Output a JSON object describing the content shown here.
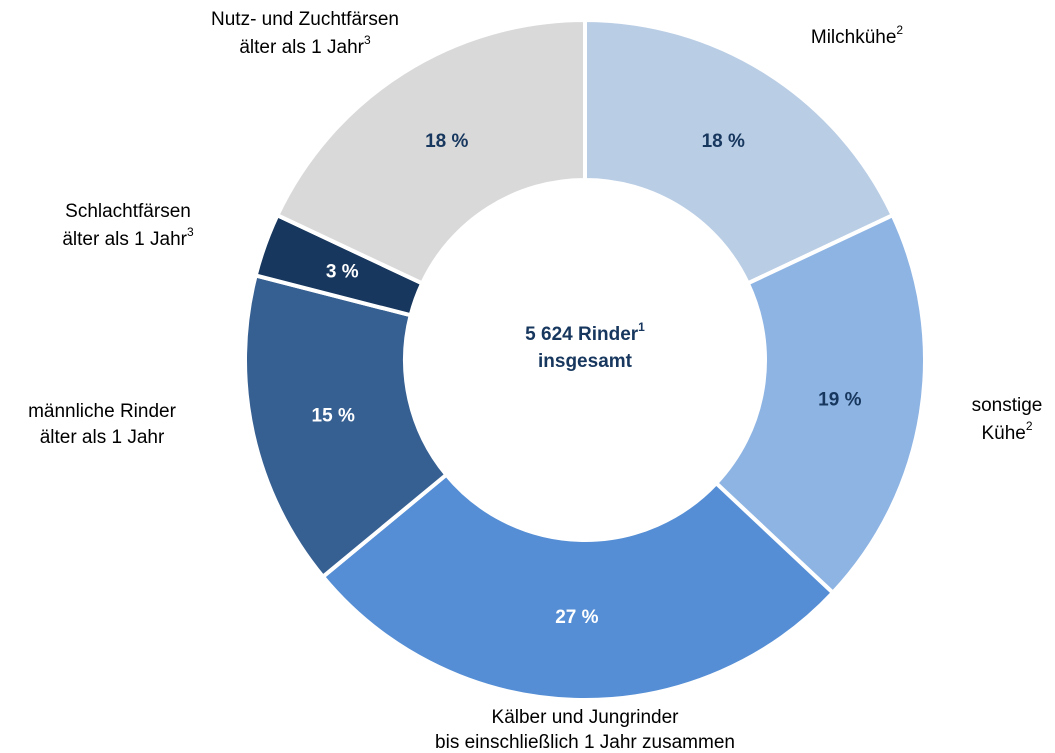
{
  "chart_data": {
    "type": "donut",
    "categories": [
      [
        "Milchkühe"
      ],
      [
        "sonstige",
        "Kühe"
      ],
      [
        "Kälber und Jungrinder",
        "bis einschließlich 1 Jahr zusammen"
      ],
      [
        "männliche Rinder",
        "älter als 1 Jahr"
      ],
      [
        "Schlachtfärsen",
        "älter als 1 Jahr"
      ],
      [
        "Nutz- und Zuchtfärsen",
        "älter als 1 Jahr"
      ]
    ],
    "category_notes": [
      "2",
      "2",
      null,
      null,
      "3",
      "3"
    ],
    "values": [
      18,
      19,
      27,
      15,
      3,
      18
    ],
    "value_labels": [
      "18 %",
      "19 %",
      "27 %",
      "15 %",
      "3 %",
      "18 %"
    ],
    "colors": [
      "#b9cde5",
      "#8eb4e3",
      "#558ed5",
      "#376092",
      "#17375e",
      "#d9d9d9"
    ],
    "label_colors": [
      "#17375e",
      "#17375e",
      "#ffffff",
      "#ffffff",
      "#ffffff",
      "#17375e"
    ],
    "center_text": [
      "5 624 Rinder",
      "insgesamt"
    ],
    "center_note": "1"
  }
}
